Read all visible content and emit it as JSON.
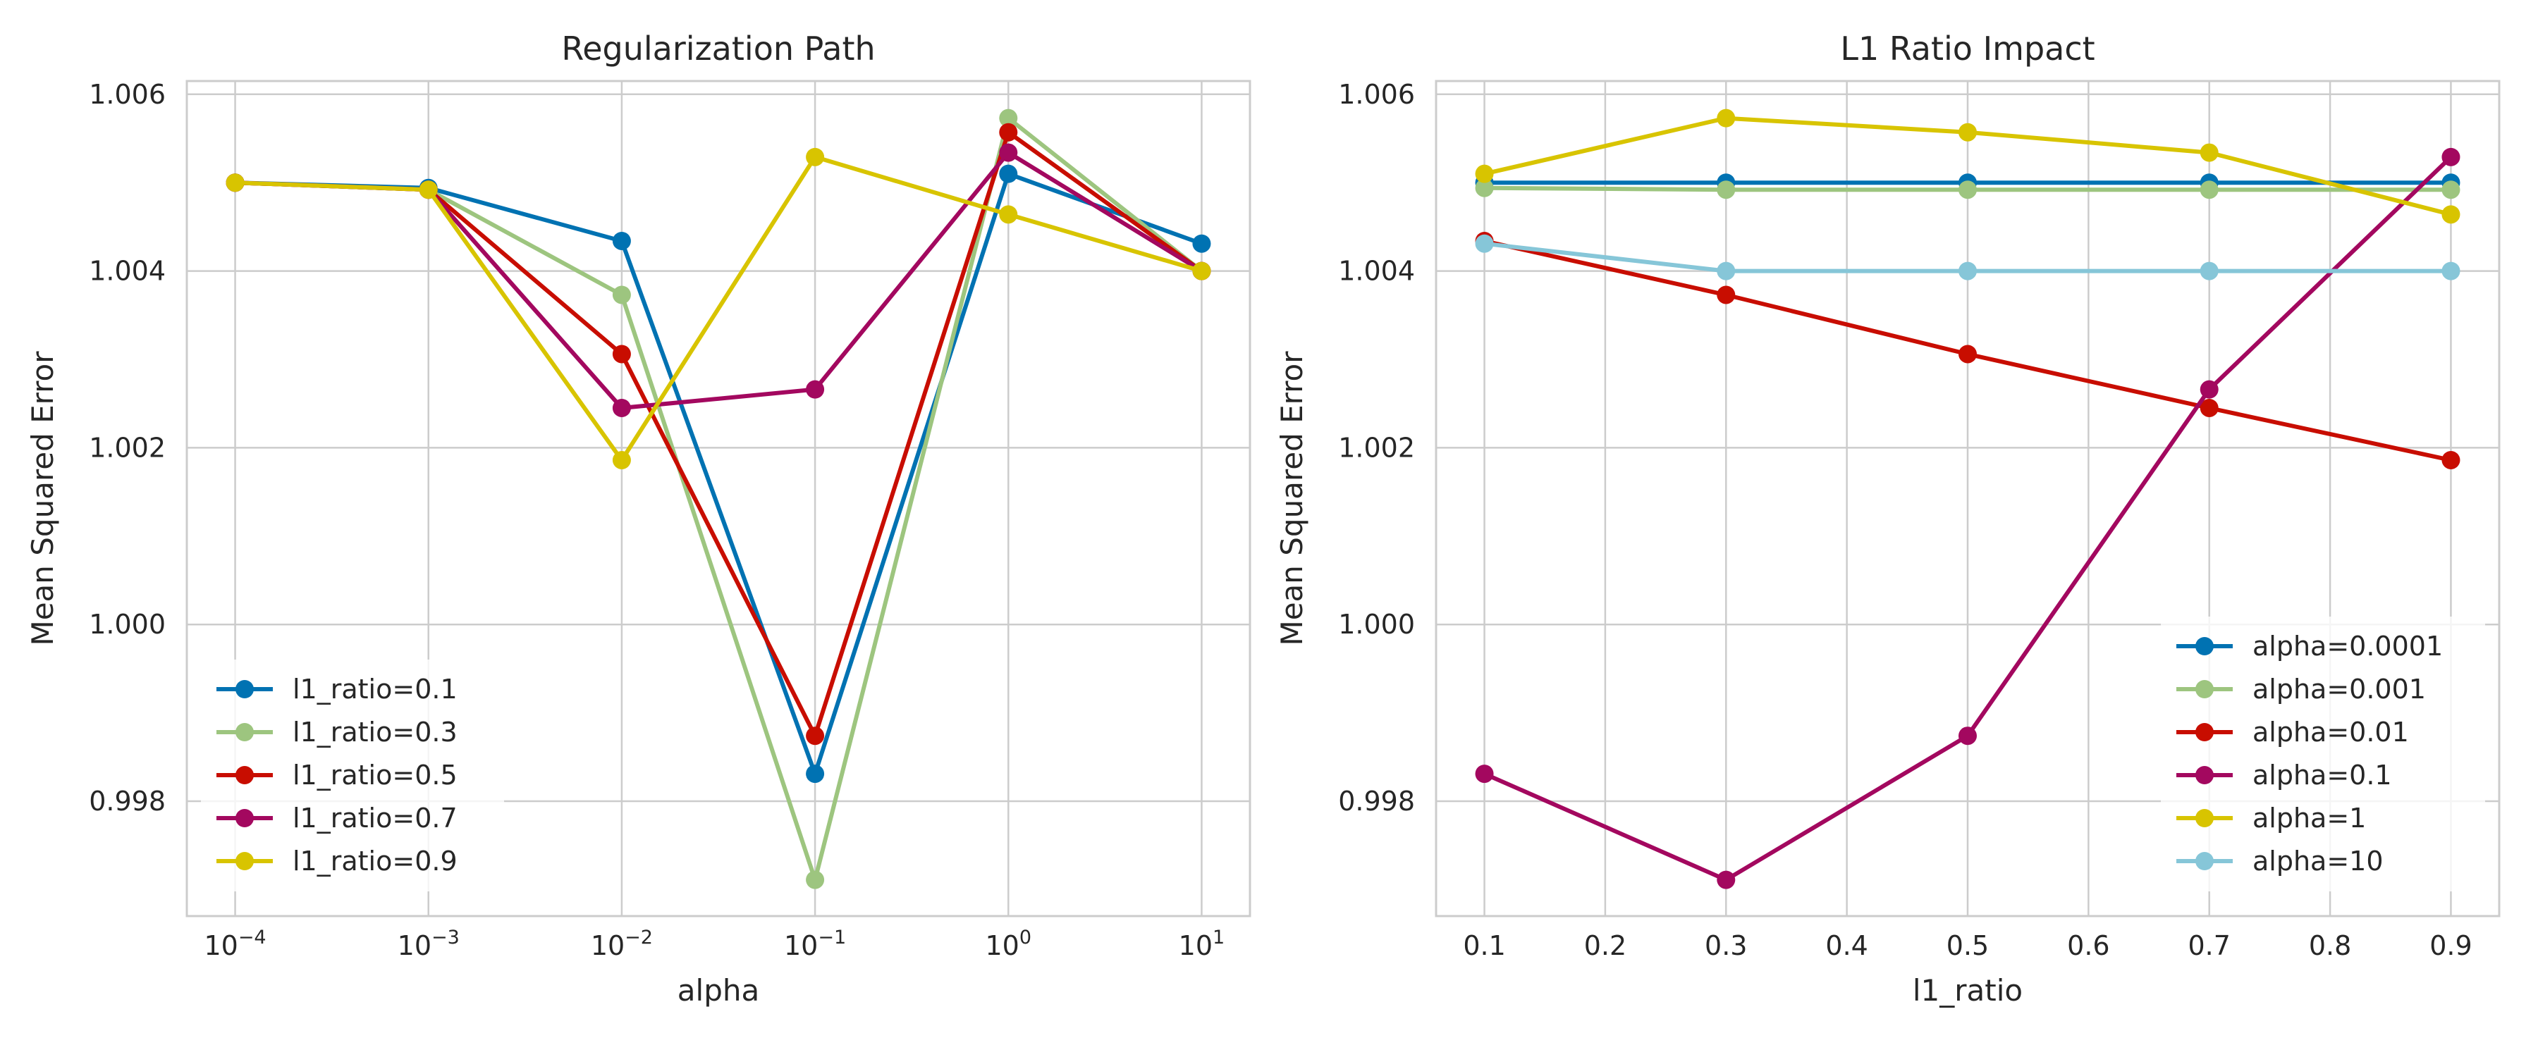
{
  "chart_data": [
    {
      "type": "line",
      "title": "Regularization Path",
      "xlabel": "alpha",
      "ylabel": "Mean Squared Error",
      "x_scale": "log",
      "x": [
        0.0001,
        0.001,
        0.01,
        0.1,
        1,
        10
      ],
      "xticks": [
        {
          "base": "10",
          "exp": "−4"
        },
        {
          "base": "10",
          "exp": "−3"
        },
        {
          "base": "10",
          "exp": "−2"
        },
        {
          "base": "10",
          "exp": "−1"
        },
        {
          "base": "10",
          "exp": "0"
        },
        {
          "base": "10",
          "exp": "1"
        }
      ],
      "yticks": [
        "0.998",
        "1.000",
        "1.002",
        "1.004",
        "1.006"
      ],
      "ylim": [
        0.9967,
        1.00615
      ],
      "grid": true,
      "legend_position": "lower-left",
      "series": [
        {
          "name": "l1_ratio=0.1",
          "color": "#0072b2",
          "values": [
            1.005,
            1.00494,
            1.00434,
            0.99831,
            1.0051,
            1.00431
          ]
        },
        {
          "name": "l1_ratio=0.3",
          "color": "#9dc57f",
          "values": [
            1.005,
            1.00492,
            1.00373,
            0.99711,
            1.00573,
            1.004
          ]
        },
        {
          "name": "l1_ratio=0.5",
          "color": "#c80d00",
          "values": [
            1.005,
            1.00492,
            1.00306,
            0.99874,
            1.00557,
            1.004
          ]
        },
        {
          "name": "l1_ratio=0.7",
          "color": "#a3085f",
          "values": [
            1.005,
            1.00492,
            1.00245,
            1.00266,
            1.00534,
            1.004
          ]
        },
        {
          "name": "l1_ratio=0.9",
          "color": "#d8c400",
          "values": [
            1.005,
            1.00492,
            1.00186,
            1.00529,
            1.00464,
            1.004
          ]
        }
      ]
    },
    {
      "type": "line",
      "title": "L1 Ratio Impact",
      "xlabel": "l1_ratio",
      "ylabel": "Mean Squared Error",
      "x": [
        0.1,
        0.3,
        0.5,
        0.7,
        0.9
      ],
      "xticks": [
        "0.1",
        "0.2",
        "0.3",
        "0.4",
        "0.5",
        "0.6",
        "0.7",
        "0.8",
        "0.9"
      ],
      "xlim": [
        0.06,
        0.94
      ],
      "yticks": [
        "0.998",
        "1.000",
        "1.002",
        "1.004",
        "1.006"
      ],
      "ylim": [
        0.9967,
        1.00615
      ],
      "grid": true,
      "legend_position": "lower-right",
      "series": [
        {
          "name": "alpha=0.0001",
          "color": "#0072b2",
          "values": [
            1.005,
            1.005,
            1.005,
            1.005,
            1.005
          ]
        },
        {
          "name": "alpha=0.001",
          "color": "#9dc57f",
          "values": [
            1.00494,
            1.00492,
            1.00492,
            1.00492,
            1.00492
          ]
        },
        {
          "name": "alpha=0.01",
          "color": "#c80d00",
          "values": [
            1.00434,
            1.00373,
            1.00306,
            1.00245,
            1.00186
          ]
        },
        {
          "name": "alpha=0.1",
          "color": "#a3085f",
          "values": [
            0.99831,
            0.99711,
            0.99874,
            1.00266,
            1.00529
          ]
        },
        {
          "name": "alpha=1",
          "color": "#d8c400",
          "values": [
            1.0051,
            1.00573,
            1.00557,
            1.00534,
            1.00464
          ]
        },
        {
          "name": "alpha=10",
          "color": "#86c6d8",
          "values": [
            1.00431,
            1.004,
            1.004,
            1.004,
            1.004
          ]
        }
      ]
    }
  ]
}
